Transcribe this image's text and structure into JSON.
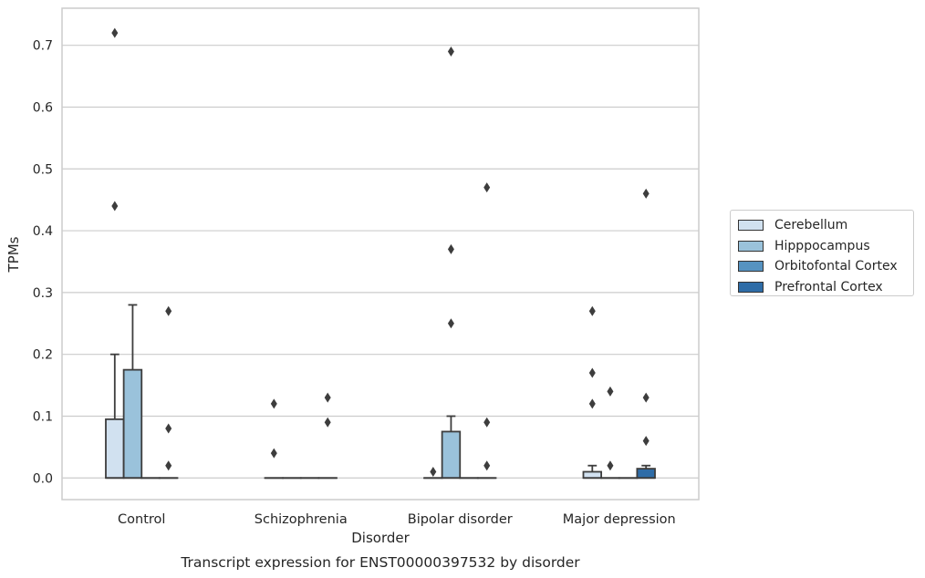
{
  "chart_data": {
    "type": "box",
    "caption": "Transcript expression for ENST00000397532 by disorder",
    "xlabel": "Disorder",
    "ylabel": "TPMs",
    "ylim": [
      -0.035,
      0.76
    ],
    "yticks": [
      0.0,
      0.1,
      0.2,
      0.3,
      0.4,
      0.5,
      0.6,
      0.7
    ],
    "ytick_labels": [
      "0.0",
      "0.1",
      "0.2",
      "0.3",
      "0.4",
      "0.5",
      "0.6",
      "0.7"
    ],
    "grid": "horizontal",
    "legend_position": "right",
    "categories": [
      "Control",
      "Schizophrenia",
      "Bipolar disorder",
      "Major depression"
    ],
    "series": [
      {
        "name": "Cerebellum",
        "color": "#d1e1f0",
        "boxes": [
          {
            "q1": 0.0,
            "median": 0.0,
            "q3": 0.095,
            "whisker_low": 0.0,
            "whisker_high": 0.2,
            "outliers": [
              0.72,
              0.44
            ]
          },
          {
            "q1": 0.0,
            "median": 0.0,
            "q3": 0.0,
            "whisker_low": 0.0,
            "whisker_high": 0.0,
            "outliers": [
              0.12,
              0.04
            ]
          },
          {
            "q1": 0.0,
            "median": 0.0,
            "q3": 0.0,
            "whisker_low": 0.0,
            "whisker_high": 0.0,
            "outliers": [
              0.01
            ]
          },
          {
            "q1": 0.0,
            "median": 0.0,
            "q3": 0.01,
            "whisker_low": 0.0,
            "whisker_high": 0.02,
            "outliers": [
              0.27,
              0.17,
              0.12
            ]
          }
        ]
      },
      {
        "name": "Hipppocampus",
        "color": "#9ac2db",
        "boxes": [
          {
            "q1": 0.0,
            "median": 0.0,
            "q3": 0.175,
            "whisker_low": 0.0,
            "whisker_high": 0.28,
            "outliers": []
          },
          {
            "q1": 0.0,
            "median": 0.0,
            "q3": 0.0,
            "whisker_low": 0.0,
            "whisker_high": 0.0,
            "outliers": []
          },
          {
            "q1": 0.0,
            "median": 0.0,
            "q3": 0.075,
            "whisker_low": 0.0,
            "whisker_high": 0.1,
            "outliers": [
              0.69,
              0.37,
              0.25
            ]
          },
          {
            "q1": 0.0,
            "median": 0.0,
            "q3": 0.0,
            "whisker_low": 0.0,
            "whisker_high": 0.0,
            "outliers": [
              0.14,
              0.02
            ]
          }
        ]
      },
      {
        "name": "Orbitofontal Cortex",
        "color": "#5693c1",
        "boxes": [
          {
            "q1": 0.0,
            "median": 0.0,
            "q3": 0.0,
            "whisker_low": 0.0,
            "whisker_high": 0.0,
            "outliers": []
          },
          {
            "q1": 0.0,
            "median": 0.0,
            "q3": 0.0,
            "whisker_low": 0.0,
            "whisker_high": 0.0,
            "outliers": []
          },
          {
            "q1": 0.0,
            "median": 0.0,
            "q3": 0.0,
            "whisker_low": 0.0,
            "whisker_high": 0.0,
            "outliers": []
          },
          {
            "q1": 0.0,
            "median": 0.0,
            "q3": 0.0,
            "whisker_low": 0.0,
            "whisker_high": 0.0,
            "outliers": []
          }
        ]
      },
      {
        "name": "Prefrontal Cortex",
        "color": "#2e6ca7",
        "boxes": [
          {
            "q1": 0.0,
            "median": 0.0,
            "q3": 0.0,
            "whisker_low": 0.0,
            "whisker_high": 0.0,
            "outliers": [
              0.27,
              0.08,
              0.02
            ]
          },
          {
            "q1": 0.0,
            "median": 0.0,
            "q3": 0.0,
            "whisker_low": 0.0,
            "whisker_high": 0.0,
            "outliers": [
              0.13,
              0.09
            ]
          },
          {
            "q1": 0.0,
            "median": 0.0,
            "q3": 0.0,
            "whisker_low": 0.0,
            "whisker_high": 0.0,
            "outliers": [
              0.47,
              0.09,
              0.02
            ]
          },
          {
            "q1": 0.0,
            "median": 0.0,
            "q3": 0.015,
            "whisker_low": 0.0,
            "whisker_high": 0.02,
            "outliers": [
              0.46,
              0.13,
              0.06
            ]
          }
        ]
      }
    ]
  }
}
